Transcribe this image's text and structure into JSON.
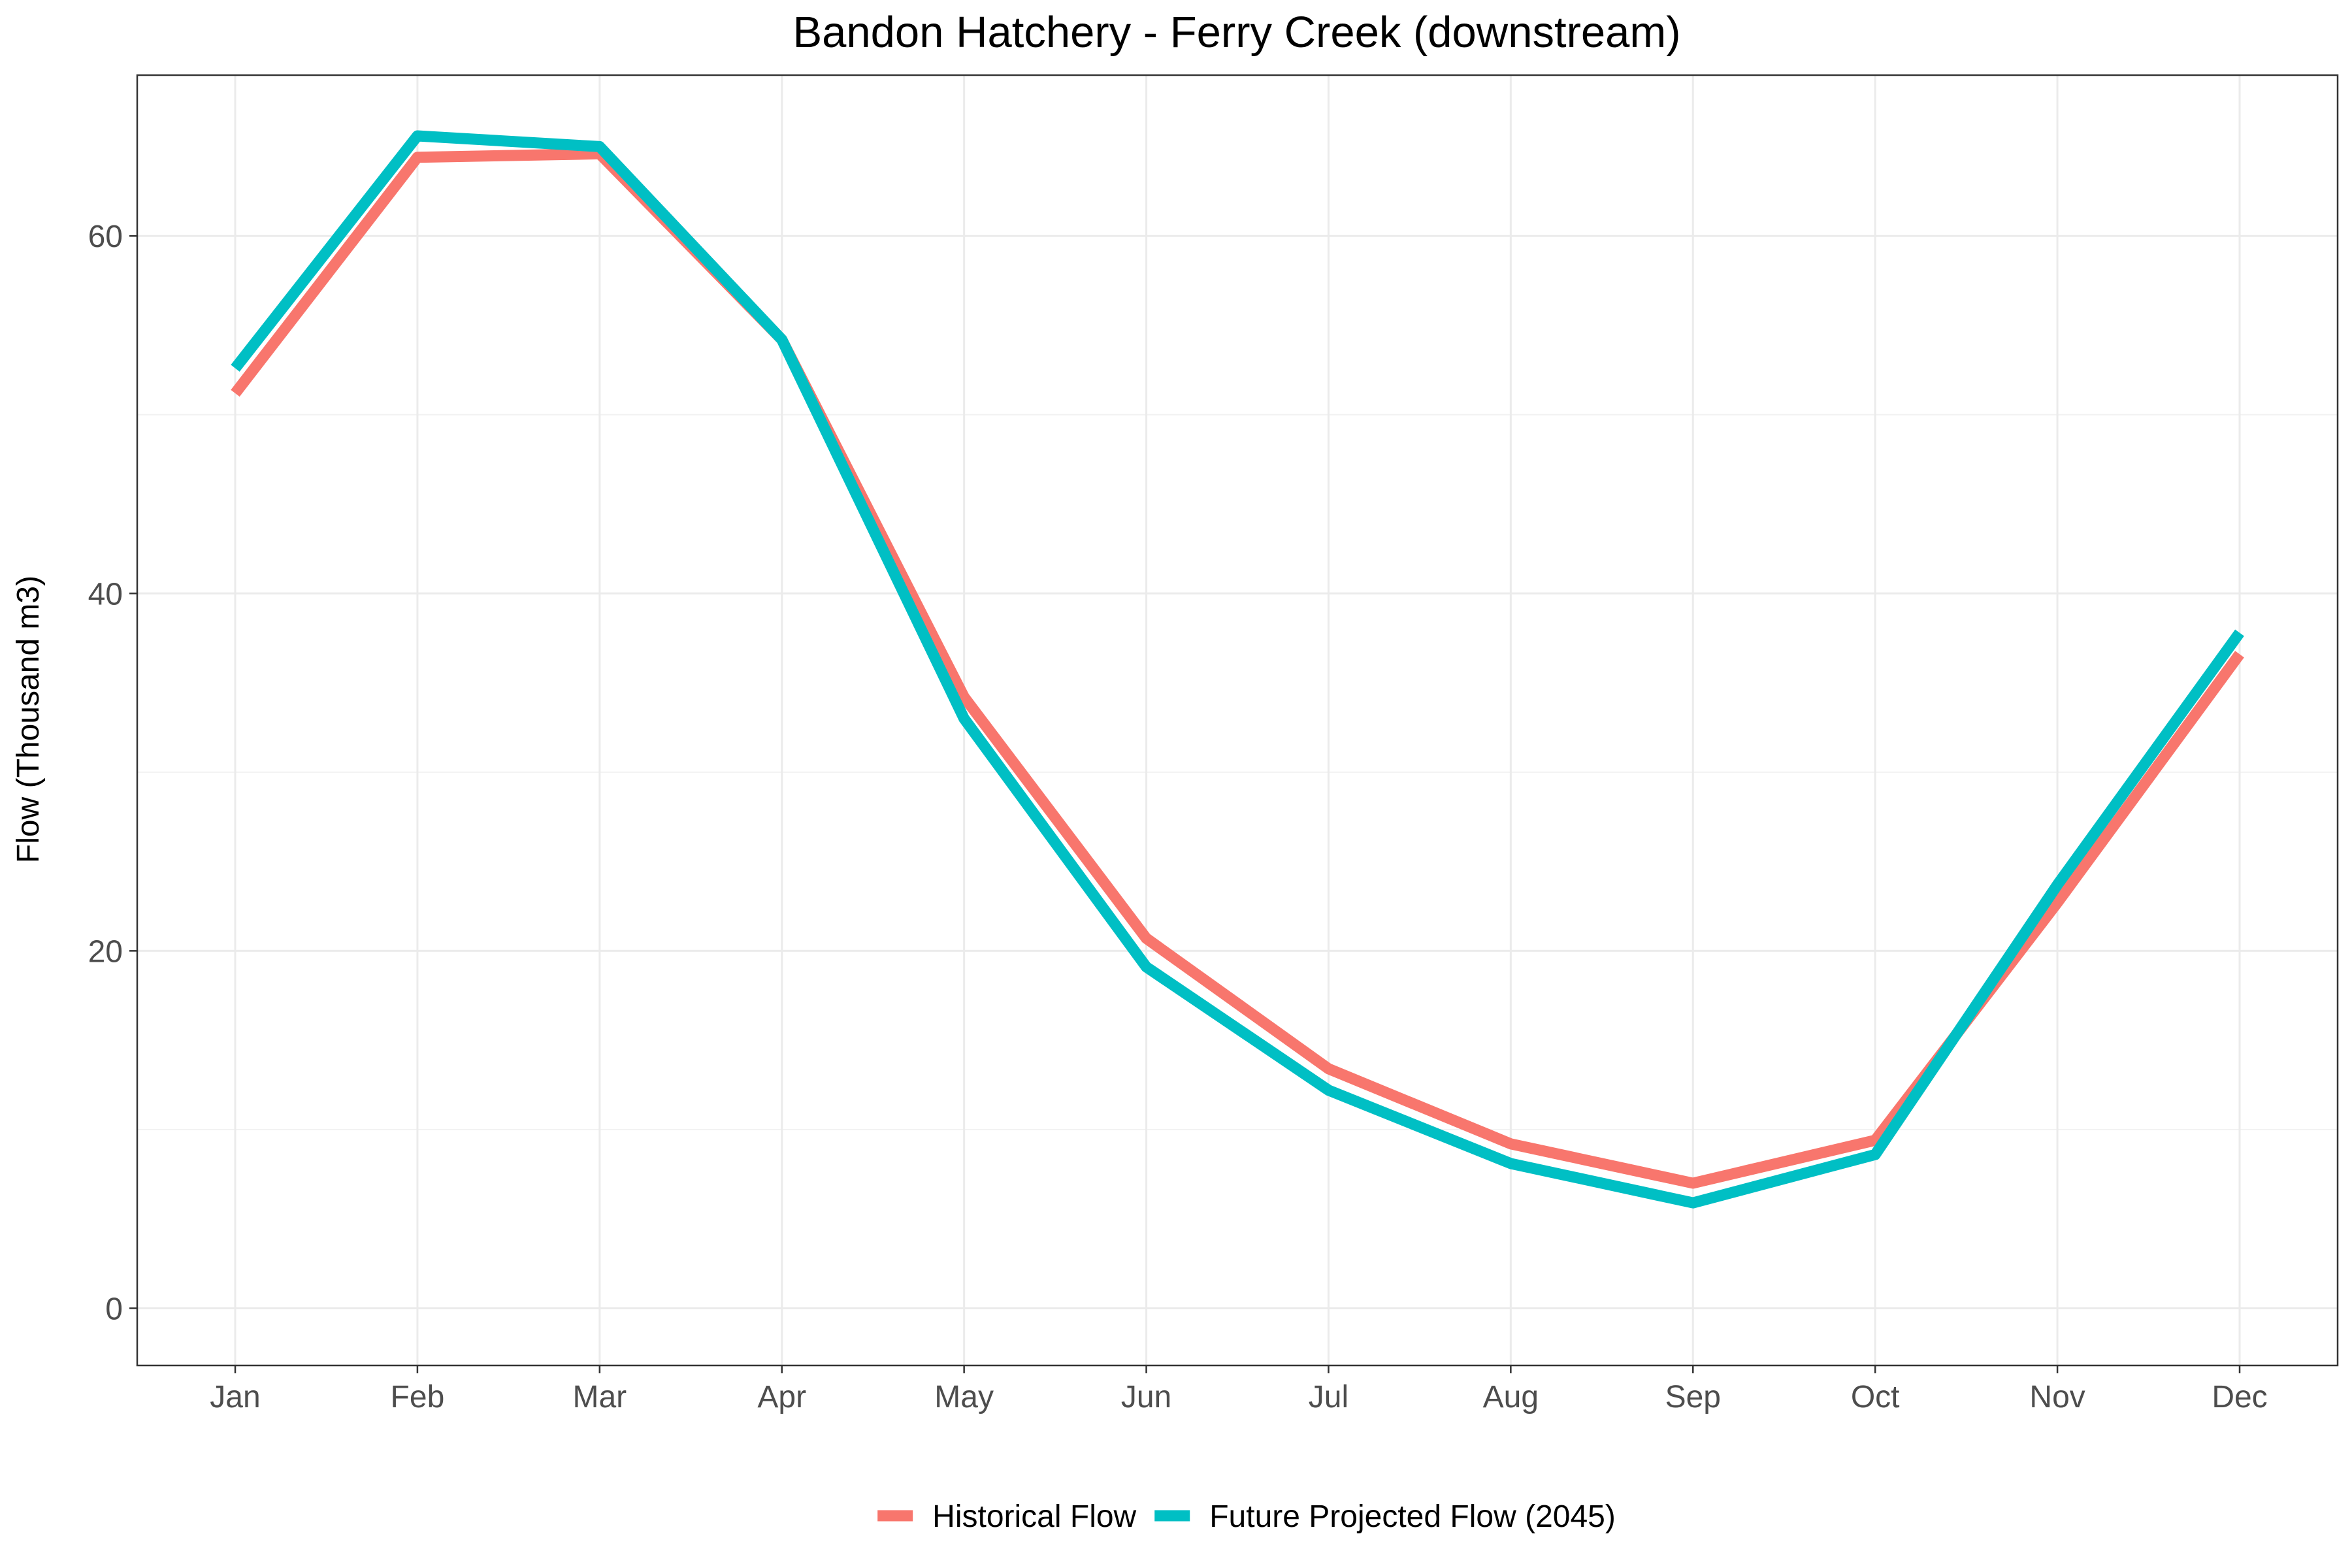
{
  "chart_data": {
    "type": "line",
    "title": "Bandon Hatchery - Ferry Creek (downstream)",
    "xlabel": "",
    "ylabel": "Flow (Thousand m3)",
    "categories": [
      "Jan",
      "Feb",
      "Mar",
      "Apr",
      "May",
      "Jun",
      "Jul",
      "Aug",
      "Sep",
      "Oct",
      "Nov",
      "Dec"
    ],
    "ylim": [
      -3.2,
      69
    ],
    "yticks": [
      0,
      20,
      40,
      60
    ],
    "grid": true,
    "legend_position": "bottom",
    "series": [
      {
        "name": "Historical Flow",
        "color": "#F8766D",
        "values": [
          51.2,
          64.4,
          64.6,
          54.2,
          34.2,
          20.7,
          13.4,
          9.2,
          7.0,
          9.4,
          22.7,
          36.6
        ]
      },
      {
        "name": "Future Projected Flow (2045)",
        "color": "#00BFC4",
        "values": [
          52.6,
          65.6,
          65.0,
          54.2,
          33.0,
          19.1,
          12.2,
          8.1,
          5.9,
          8.6,
          23.7,
          37.8
        ]
      }
    ]
  }
}
